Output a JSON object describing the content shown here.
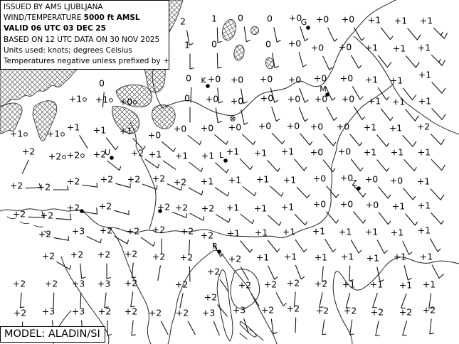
{
  "header": {
    "lines": [
      [
        {
          "t": "ISSUED BY AMS LJUBLJANA",
          "b": 0
        }
      ],
      [
        {
          "t": "WIND/TEMPERATURE ",
          "b": 0
        },
        {
          "t": "5000 ft AMSL",
          "b": 1
        }
      ],
      [
        {
          "t": "VALID 06 UTC 03 DEC 25",
          "b": 1
        }
      ],
      [
        {
          "t": "BASED ON 12 UTC DATA ON 30 NOV 2025",
          "b": 0
        }
      ],
      [
        {
          "t": "Units used: knots; degrees Celsius",
          "b": 0
        }
      ],
      [
        {
          "t": "Temperatures negative unless prefixed by +",
          "b": 0
        }
      ]
    ]
  },
  "model_label": "MODEL: ALADIN/SI",
  "colors": {
    "ink": "#000000",
    "background": "#ffffff"
  },
  "chart_data": {
    "type": "scatter",
    "title": "WIND/TEMPERATURE 5000 ft AMSL",
    "level": "5000 ft AMSL",
    "valid": "06 UTC 03 DEC 25",
    "based_on": "12 UTC DATA ON 30 NOV 2025",
    "units": {
      "wind": "knots",
      "temperature": "degrees Celsius"
    },
    "station_format": "[x_px, y_px, temperature_label, wind_from_deg, wind_speed_kt] — speed 0 = calm circle, 2 = bare shaft, 5 = half barb, 10 = full barb, 15 = full+half",
    "stations": [
      [
        257,
        30,
        "2",
        170,
        5
      ],
      [
        301,
        26,
        "1",
        178,
        5
      ],
      [
        338,
        25,
        "0",
        172,
        5
      ],
      [
        379,
        26,
        "0",
        168,
        5
      ],
      [
        415,
        25,
        "+0",
        162,
        5
      ],
      [
        453,
        27,
        "+0",
        155,
        5
      ],
      [
        489,
        27,
        "+0",
        150,
        5
      ],
      [
        526,
        28,
        "+1",
        142,
        5
      ],
      [
        563,
        29,
        "+1",
        140,
        10
      ],
      [
        599,
        29,
        "+1",
        135,
        15
      ],
      [
        263,
        63,
        "1",
        180,
        5
      ],
      [
        301,
        62,
        "0",
        178,
        5
      ],
      [
        377,
        62,
        "0",
        170,
        5
      ],
      [
        414,
        61,
        "+0",
        165,
        5
      ],
      [
        446,
        67,
        "+0",
        155,
        5
      ],
      [
        485,
        66,
        "+0",
        150,
        5
      ],
      [
        522,
        67,
        "+1",
        142,
        10
      ],
      [
        561,
        68,
        "+1",
        140,
        10
      ],
      [
        596,
        67,
        "+1",
        135,
        15
      ],
      [
        143,
        117,
        "0",
        185,
        2
      ],
      [
        265,
        110,
        "0",
        182,
        2
      ],
      [
        301,
        111,
        "+0",
        175,
        5
      ],
      [
        333,
        112,
        "+0",
        170,
        5
      ],
      [
        374,
        111,
        "+0",
        165,
        5
      ],
      [
        414,
        112,
        "+0",
        160,
        5
      ],
      [
        450,
        110,
        "+0",
        155,
        5
      ],
      [
        487,
        110,
        "+0",
        150,
        5
      ],
      [
        522,
        112,
        "+1",
        145,
        5
      ],
      [
        557,
        113,
        "+1",
        142,
        10
      ],
      [
        597,
        105,
        "+1",
        138,
        10
      ],
      [
        106,
        139,
        "+1",
        0,
        0
      ],
      [
        143,
        140,
        "+1",
        0,
        0
      ],
      [
        177,
        143,
        "+0",
        0,
        0
      ],
      [
        263,
        138,
        "0",
        180,
        2
      ],
      [
        298,
        139,
        "+0",
        172,
        5
      ],
      [
        333,
        142,
        "+0",
        168,
        5
      ],
      [
        375,
        138,
        "+0",
        162,
        5
      ],
      [
        413,
        139,
        "+0",
        158,
        5
      ],
      [
        451,
        139,
        "+0",
        152,
        5
      ],
      [
        489,
        139,
        "+0",
        148,
        5
      ],
      [
        526,
        142,
        "+1",
        142,
        5
      ],
      [
        560,
        143,
        "+1",
        140,
        10
      ],
      [
        597,
        142,
        "+1",
        138,
        10
      ],
      [
        23,
        188,
        "+1",
        0,
        0
      ],
      [
        75,
        188,
        "+1",
        0,
        0
      ],
      [
        103,
        179,
        "+1",
        148,
        2
      ],
      [
        140,
        183,
        "+1",
        142,
        5
      ],
      [
        177,
        184,
        "+1",
        138,
        5
      ],
      [
        217,
        190,
        "+0",
        130,
        5
      ],
      [
        253,
        181,
        "+0",
        128,
        5
      ],
      [
        291,
        180,
        "+0",
        130,
        5
      ],
      [
        330,
        179,
        "+0",
        133,
        5
      ],
      [
        372,
        177,
        "+0",
        136,
        5
      ],
      [
        412,
        177,
        "+0",
        140,
        5
      ],
      [
        445,
        178,
        "+0",
        140,
        5
      ],
      [
        482,
        178,
        "+0",
        140,
        5
      ],
      [
        520,
        179,
        "+1",
        140,
        5
      ],
      [
        556,
        180,
        "+1",
        138,
        10
      ],
      [
        595,
        178,
        "+2",
        136,
        10
      ],
      [
        40,
        213,
        "+2",
        205,
        2
      ],
      [
        77,
        220,
        "+2",
        0,
        0
      ],
      [
        103,
        218,
        "+2",
        0,
        0
      ],
      [
        140,
        217,
        "+2",
        128,
        5
      ],
      [
        193,
        215,
        "+2",
        125,
        5
      ],
      [
        218,
        217,
        "+1",
        125,
        2
      ],
      [
        255,
        219,
        "+1",
        128,
        5
      ],
      [
        292,
        219,
        "+1",
        132,
        5
      ],
      [
        327,
        213,
        "+1",
        136,
        5
      ],
      [
        366,
        215,
        "+1",
        138,
        5
      ],
      [
        404,
        213,
        "+1",
        140,
        5
      ],
      [
        445,
        214,
        "+0",
        142,
        5
      ],
      [
        484,
        213,
        "+0",
        142,
        5
      ],
      [
        520,
        214,
        "+1",
        140,
        5
      ],
      [
        558,
        214,
        "+1",
        138,
        5
      ],
      [
        596,
        214,
        "+1",
        136,
        10
      ],
      [
        23,
        261,
        "+2",
        88,
        5
      ],
      [
        62,
        263,
        "+2",
        90,
        5
      ],
      [
        103,
        255,
        "+2",
        98,
        5
      ],
      [
        150,
        252,
        "+2",
        105,
        5
      ],
      [
        188,
        252,
        "+2",
        110,
        5
      ],
      [
        223,
        251,
        "+2",
        115,
        5
      ],
      [
        253,
        256,
        "+2",
        118,
        5
      ],
      [
        291,
        255,
        "+1",
        124,
        5
      ],
      [
        330,
        253,
        "+1",
        128,
        5
      ],
      [
        369,
        252,
        "+1",
        132,
        5
      ],
      [
        407,
        253,
        "+1",
        136,
        5
      ],
      [
        449,
        251,
        "+0",
        140,
        5
      ],
      [
        487,
        250,
        "+0",
        140,
        5
      ],
      [
        522,
        252,
        "+0",
        140,
        5
      ],
      [
        557,
        254,
        "+0",
        140,
        5
      ],
      [
        595,
        255,
        "+1",
        138,
        10
      ],
      [
        27,
        301,
        "+2",
        92,
        10
      ],
      [
        66,
        303,
        "+2",
        94,
        10
      ],
      [
        103,
        292,
        "+2",
        100,
        10
      ],
      [
        148,
        290,
        "+2",
        105,
        5
      ],
      [
        230,
        291,
        "+2",
        112,
        5
      ],
      [
        255,
        292,
        "+2",
        118,
        5
      ],
      [
        292,
        293,
        "+2",
        122,
        5
      ],
      [
        327,
        292,
        "+1",
        128,
        5
      ],
      [
        366,
        293,
        "+1",
        132,
        5
      ],
      [
        404,
        291,
        "+1",
        136,
        5
      ],
      [
        449,
        287,
        "+0",
        140,
        5
      ],
      [
        487,
        287,
        "+0",
        140,
        5
      ],
      [
        523,
        288,
        "+0",
        142,
        5
      ],
      [
        560,
        290,
        "+1",
        140,
        5
      ],
      [
        596,
        289,
        "+1",
        138,
        5
      ],
      [
        63,
        329,
        "+2",
        100,
        5
      ],
      [
        110,
        325,
        "+3",
        115,
        5
      ],
      [
        149,
        324,
        "+2",
        120,
        5
      ],
      [
        187,
        325,
        "+2",
        125,
        5
      ],
      [
        223,
        323,
        "+2",
        180,
        2
      ],
      [
        263,
        325,
        "+2",
        183,
        2
      ],
      [
        291,
        331,
        "+2",
        150,
        5
      ],
      [
        328,
        328,
        "+1",
        140,
        5
      ],
      [
        367,
        327,
        "+1",
        142,
        5
      ],
      [
        406,
        326,
        "+1",
        145,
        5
      ],
      [
        448,
        325,
        "+1",
        148,
        5
      ],
      [
        485,
        326,
        "+1",
        150,
        5
      ],
      [
        522,
        326,
        "+1",
        152,
        5
      ],
      [
        558,
        327,
        "+1",
        155,
        5
      ],
      [
        596,
        324,
        "+1",
        150,
        5
      ],
      [
        68,
        360,
        "+2",
        120,
        5
      ],
      [
        108,
        358,
        "+2",
        175,
        5
      ],
      [
        146,
        358,
        "+2",
        180,
        5
      ],
      [
        184,
        357,
        "+2",
        185,
        5
      ],
      [
        223,
        361,
        "+2",
        190,
        2
      ],
      [
        262,
        362,
        "+2",
        178,
        2
      ],
      [
        300,
        382,
        "+2",
        145,
        2
      ],
      [
        330,
        364,
        "+2",
        150,
        2
      ],
      [
        369,
        362,
        "+1",
        155,
        5
      ],
      [
        408,
        361,
        "+1",
        158,
        5
      ],
      [
        451,
        362,
        "+1",
        185,
        5
      ],
      [
        488,
        361,
        "+1",
        182,
        5
      ],
      [
        524,
        363,
        "+1",
        168,
        5
      ],
      [
        562,
        361,
        "+1",
        166,
        5
      ],
      [
        599,
        361,
        "+1",
        152,
        10
      ],
      [
        27,
        399,
        "+2",
        185,
        5
      ],
      [
        72,
        399,
        "+2",
        182,
        2
      ],
      [
        110,
        399,
        "+3",
        182,
        2
      ],
      [
        146,
        399,
        "+3",
        186,
        5
      ],
      [
        184,
        398,
        "+2",
        188,
        5
      ],
      [
        255,
        400,
        "+2",
        192,
        2
      ],
      [
        296,
        418,
        "+2",
        140,
        2
      ],
      [
        344,
        401,
        "+2",
        148,
        2
      ],
      [
        380,
        400,
        "+2",
        152,
        5
      ],
      [
        412,
        398,
        "+2",
        185,
        2
      ],
      [
        451,
        399,
        "+2",
        192,
        5
      ],
      [
        490,
        400,
        "+1",
        195,
        5
      ],
      [
        529,
        400,
        "+1",
        198,
        5
      ],
      [
        570,
        401,
        "+1",
        200,
        5
      ],
      [
        603,
        400,
        "+1",
        188,
        5
      ],
      [
        28,
        440,
        "+2",
        182,
        5
      ],
      [
        68,
        438,
        "+3",
        172,
        5
      ],
      [
        110,
        438,
        "+3",
        176,
        5
      ],
      [
        147,
        438,
        "+2",
        180,
        5
      ],
      [
        184,
        438,
        "+2",
        186,
        5
      ],
      [
        218,
        440,
        "+2",
        152,
        2
      ],
      [
        256,
        440,
        "+2",
        152,
        2
      ],
      [
        293,
        440,
        "+3",
        158,
        2
      ],
      [
        336,
        436,
        "+3",
        162,
        2
      ],
      [
        376,
        436,
        "+2",
        172,
        5
      ],
      [
        412,
        434,
        "+2",
        182,
        2
      ],
      [
        453,
        437,
        "+2",
        188,
        5
      ],
      [
        492,
        437,
        "+2",
        188,
        5
      ],
      [
        530,
        439,
        "+2",
        192,
        5
      ],
      [
        570,
        439,
        "+2",
        196,
        5
      ],
      [
        603,
        436,
        "+2",
        186,
        5
      ]
    ],
    "cities": {
      "format": "[x_px, y_px, letter]",
      "points": [
        [
          433,
          39,
          "G"
        ],
        [
          292,
          121,
          "K"
        ],
        [
          460,
          133,
          "M"
        ],
        [
          157,
          222,
          "U"
        ],
        [
          317,
          226,
          "L"
        ],
        [
          504,
          265,
          "Z"
        ],
        [
          308,
          354,
          "R"
        ],
        [
          115,
          297,
          ""
        ],
        [
          225,
          297,
          ""
        ]
      ]
    },
    "spot_symbol": [
      327,
      167
    ],
    "layout_hints": {
      "grid": "irregular station grid ~37px x ~40px",
      "terrain": "cross-hatched areas = ground above 5000 ft (NW Alps)",
      "legend_position": "top-left box",
      "model_box_position": "bottom-left"
    }
  }
}
